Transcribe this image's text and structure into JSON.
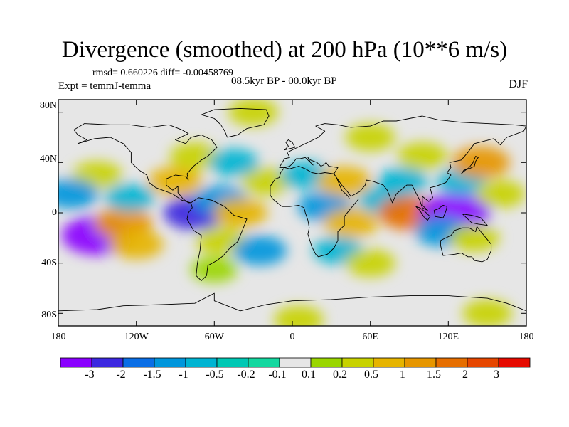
{
  "title": "Divergence (smoothed) at 200 hPa (10**6 m/s)",
  "stats": "rmsd= 0.660226 diff= -0.00458769",
  "experiment": "Expt = temmJ-temma",
  "period": "08.5kyr BP - 00.0kyr BP",
  "season": "DJF",
  "lat_ticks": [
    "80N",
    "40N",
    "0",
    "40S",
    "80S"
  ],
  "lon_ticks": [
    "180",
    "120W",
    "60W",
    "0",
    "60E",
    "120E",
    "180"
  ],
  "colorbar": {
    "labels": [
      "-3",
      "-2",
      "-1.5",
      "-1",
      "-0.5",
      "-0.2",
      "-0.1",
      "0.1",
      "0.2",
      "0.5",
      "1",
      "1.5",
      "2",
      "3"
    ],
    "colors": [
      "#8a00ff",
      "#3c28e0",
      "#0a6ee6",
      "#0096dc",
      "#00b4d2",
      "#00c8b4",
      "#14d8a0",
      "#e6e6e6",
      "#9ad600",
      "#c8d200",
      "#e6b400",
      "#e69600",
      "#e66e00",
      "#e64600",
      "#e60a00"
    ]
  },
  "map": {
    "lat_range": [
      -90,
      90
    ],
    "lon_range": [
      -180,
      180
    ],
    "neutral_color": "#e6e6e6",
    "anomalies": [
      {
        "lon": -150,
        "lat": -18,
        "value": -3
      },
      {
        "lon": -130,
        "lat": -8,
        "value": 1.5
      },
      {
        "lon": -120,
        "lat": -25,
        "value": 1
      },
      {
        "lon": -150,
        "lat": 30,
        "value": 0.5
      },
      {
        "lon": -125,
        "lat": 12,
        "value": -0.5
      },
      {
        "lon": -170,
        "lat": 15,
        "value": -1
      },
      {
        "lon": -90,
        "lat": 25,
        "value": 1
      },
      {
        "lon": -75,
        "lat": 0,
        "value": -2
      },
      {
        "lon": -55,
        "lat": 10,
        "value": -1
      },
      {
        "lon": -40,
        "lat": 0,
        "value": 1
      },
      {
        "lon": -55,
        "lat": -22,
        "value": 0.5
      },
      {
        "lon": -25,
        "lat": -30,
        "value": -1
      },
      {
        "lon": -60,
        "lat": -45,
        "value": 0.2
      },
      {
        "lon": -20,
        "lat": 25,
        "value": 0.5
      },
      {
        "lon": -75,
        "lat": 45,
        "value": 0.5
      },
      {
        "lon": -45,
        "lat": 40,
        "value": -0.5
      },
      {
        "lon": 10,
        "lat": 30,
        "value": -0.5
      },
      {
        "lon": 25,
        "lat": 5,
        "value": -1
      },
      {
        "lon": 40,
        "lat": 25,
        "value": 1
      },
      {
        "lon": 45,
        "lat": -8,
        "value": 1
      },
      {
        "lon": 35,
        "lat": -30,
        "value": -0.5
      },
      {
        "lon": 60,
        "lat": -40,
        "value": 0.5
      },
      {
        "lon": 70,
        "lat": 10,
        "value": -0.5
      },
      {
        "lon": 90,
        "lat": 0,
        "value": 2
      },
      {
        "lon": 85,
        "lat": 25,
        "value": -0.5
      },
      {
        "lon": 125,
        "lat": 0,
        "value": -3
      },
      {
        "lon": 115,
        "lat": -15,
        "value": -1
      },
      {
        "lon": 140,
        "lat": -20,
        "value": 0.5
      },
      {
        "lon": 130,
        "lat": 25,
        "value": -0.5
      },
      {
        "lon": 145,
        "lat": 40,
        "value": 1.5
      },
      {
        "lon": 100,
        "lat": 45,
        "value": 0.5
      },
      {
        "lon": 160,
        "lat": 15,
        "value": 0.5
      },
      {
        "lon": 60,
        "lat": 60,
        "value": 0.5
      },
      {
        "lon": -30,
        "lat": 80,
        "value": 0.5
      },
      {
        "lon": 5,
        "lat": -85,
        "value": 0.5
      },
      {
        "lon": 150,
        "lat": -80,
        "value": 0.5
      }
    ],
    "coastlines": [
      [
        [
          -168,
          66
        ],
        [
          -160,
          71
        ],
        [
          -140,
          70
        ],
        [
          -125,
          70
        ],
        [
          -110,
          68
        ],
        [
          -95,
          70
        ],
        [
          -85,
          66
        ],
        [
          -80,
          63
        ],
        [
          -90,
          58
        ],
        [
          -82,
          55
        ],
        [
          -78,
          60
        ],
        [
          -70,
          62
        ],
        [
          -62,
          58
        ],
        [
          -58,
          52
        ],
        [
          -65,
          45
        ],
        [
          -70,
          42
        ],
        [
          -76,
          37
        ],
        [
          -81,
          31
        ],
        [
          -80,
          26
        ],
        [
          -82,
          29
        ],
        [
          -90,
          30
        ],
        [
          -97,
          27
        ],
        [
          -97,
          22
        ],
        [
          -92,
          18
        ],
        [
          -88,
          21
        ],
        [
          -88,
          16
        ],
        [
          -84,
          11
        ],
        [
          -80,
          8
        ],
        [
          -78,
          8
        ],
        [
          -85,
          10
        ],
        [
          -92,
          15
        ],
        [
          -105,
          20
        ],
        [
          -110,
          24
        ],
        [
          -112,
          30
        ],
        [
          -118,
          34
        ],
        [
          -124,
          40
        ],
        [
          -124,
          48
        ],
        [
          -130,
          55
        ],
        [
          -140,
          60
        ],
        [
          -152,
          59
        ],
        [
          -165,
          55
        ],
        [
          -158,
          58
        ],
        [
          -165,
          62
        ],
        [
          -168,
          66
        ]
      ],
      [
        [
          -78,
          8
        ],
        [
          -72,
          12
        ],
        [
          -62,
          10
        ],
        [
          -52,
          5
        ],
        [
          -45,
          -2
        ],
        [
          -35,
          -5
        ],
        [
          -38,
          -13
        ],
        [
          -42,
          -23
        ],
        [
          -48,
          -28
        ],
        [
          -53,
          -34
        ],
        [
          -58,
          -38
        ],
        [
          -65,
          -42
        ],
        [
          -66,
          -50
        ],
        [
          -70,
          -54
        ],
        [
          -74,
          -50
        ],
        [
          -73,
          -40
        ],
        [
          -71,
          -30
        ],
        [
          -70,
          -18
        ],
        [
          -76,
          -14
        ],
        [
          -81,
          -5
        ],
        [
          -80,
          0
        ],
        [
          -77,
          4
        ],
        [
          -78,
          8
        ]
      ],
      [
        [
          -50,
          60
        ],
        [
          -42,
          62
        ],
        [
          -35,
          67
        ],
        [
          -22,
          70
        ],
        [
          -18,
          77
        ],
        [
          -20,
          82
        ],
        [
          -40,
          83
        ],
        [
          -60,
          82
        ],
        [
          -70,
          78
        ],
        [
          -60,
          75
        ],
        [
          -55,
          70
        ],
        [
          -52,
          65
        ],
        [
          -50,
          60
        ]
      ],
      [
        [
          -10,
          36
        ],
        [
          -6,
          43
        ],
        [
          -2,
          44
        ],
        [
          -4,
          48
        ],
        [
          2,
          51
        ],
        [
          8,
          54
        ],
        [
          12,
          56
        ],
        [
          20,
          60
        ],
        [
          25,
          65
        ],
        [
          18,
          69
        ],
        [
          25,
          71
        ],
        [
          35,
          70
        ],
        [
          45,
          68
        ],
        [
          60,
          69
        ],
        [
          70,
          73
        ],
        [
          80,
          73
        ],
        [
          100,
          77
        ],
        [
          112,
          74
        ],
        [
          130,
          72
        ],
        [
          150,
          71
        ],
        [
          170,
          70
        ],
        [
          180,
          69
        ],
        [
          178,
          65
        ],
        [
          165,
          60
        ],
        [
          160,
          54
        ],
        [
          155,
          59
        ],
        [
          140,
          55
        ],
        [
          135,
          48
        ],
        [
          130,
          42
        ],
        [
          121,
          40
        ],
        [
          122,
          36
        ],
        [
          119,
          32
        ],
        [
          122,
          30
        ],
        [
          118,
          24
        ],
        [
          110,
          21
        ],
        [
          106,
          20
        ],
        [
          108,
          12
        ],
        [
          105,
          9
        ],
        [
          100,
          13
        ],
        [
          100,
          6
        ],
        [
          104,
          2
        ],
        [
          100,
          4
        ],
        [
          98,
          10
        ],
        [
          95,
          16
        ],
        [
          92,
          22
        ],
        [
          88,
          22
        ],
        [
          80,
          15
        ],
        [
          77,
          8
        ],
        [
          73,
          18
        ],
        [
          70,
          22
        ],
        [
          62,
          25
        ],
        [
          57,
          26
        ],
        [
          56,
          22
        ],
        [
          52,
          17
        ],
        [
          45,
          13
        ],
        [
          43,
          16
        ],
        [
          38,
          22
        ],
        [
          34,
          28
        ],
        [
          32,
          31
        ],
        [
          35,
          36
        ],
        [
          28,
          37
        ],
        [
          26,
          40
        ],
        [
          24,
          38
        ],
        [
          22,
          37
        ],
        [
          19,
          40
        ],
        [
          14,
          42
        ],
        [
          12,
          44
        ],
        [
          14,
          40
        ],
        [
          16,
          38
        ],
        [
          10,
          44
        ],
        [
          6,
          43
        ],
        [
          3,
          43
        ],
        [
          0,
          39
        ],
        [
          -2,
          37
        ],
        [
          -6,
          36
        ],
        [
          -10,
          36
        ]
      ],
      [
        [
          -17,
          21
        ],
        [
          -17,
          14
        ],
        [
          -15,
          11
        ],
        [
          -8,
          5
        ],
        [
          -2,
          5
        ],
        [
          5,
          6
        ],
        [
          9,
          4
        ],
        [
          10,
          0
        ],
        [
          12,
          -6
        ],
        [
          13,
          -12
        ],
        [
          12,
          -17
        ],
        [
          15,
          -27
        ],
        [
          18,
          -33
        ],
        [
          20,
          -35
        ],
        [
          27,
          -33
        ],
        [
          32,
          -28
        ],
        [
          35,
          -22
        ],
        [
          35,
          -15
        ],
        [
          40,
          -10
        ],
        [
          40,
          -3
        ],
        [
          43,
          1
        ],
        [
          51,
          11
        ],
        [
          44,
          11
        ],
        [
          43,
          13
        ],
        [
          38,
          18
        ],
        [
          34,
          28
        ],
        [
          32,
          31
        ],
        [
          25,
          32
        ],
        [
          20,
          31
        ],
        [
          15,
          32
        ],
        [
          10,
          35
        ],
        [
          5,
          37
        ],
        [
          -2,
          35
        ],
        [
          -6,
          36
        ],
        [
          -9,
          32
        ],
        [
          -10,
          28
        ],
        [
          -13,
          27
        ],
        [
          -17,
          21
        ]
      ],
      [
        [
          114,
          -22
        ],
        [
          114,
          -26
        ],
        [
          116,
          -34
        ],
        [
          125,
          -33
        ],
        [
          130,
          -32
        ],
        [
          135,
          -35
        ],
        [
          138,
          -35
        ],
        [
          140,
          -38
        ],
        [
          146,
          -39
        ],
        [
          150,
          -37
        ],
        [
          153,
          -30
        ],
        [
          153,
          -25
        ],
        [
          149,
          -20
        ],
        [
          145,
          -15
        ],
        [
          142,
          -11
        ],
        [
          141,
          -15
        ],
        [
          136,
          -12
        ],
        [
          131,
          -12
        ],
        [
          125,
          -14
        ],
        [
          122,
          -18
        ],
        [
          114,
          -22
        ]
      ],
      [
        [
          95,
          5
        ],
        [
          98,
          4
        ],
        [
          102,
          1
        ],
        [
          106,
          -3
        ],
        [
          104,
          -6
        ],
        [
          101,
          -3
        ],
        [
          98,
          2
        ],
        [
          95,
          5
        ]
      ],
      [
        [
          109,
          2
        ],
        [
          112,
          3
        ],
        [
          116,
          6
        ],
        [
          119,
          5
        ],
        [
          118,
          1
        ],
        [
          116,
          -4
        ],
        [
          110,
          -3
        ],
        [
          109,
          2
        ]
      ],
      [
        [
          131,
          -1
        ],
        [
          138,
          -2
        ],
        [
          145,
          -4
        ],
        [
          150,
          -10
        ],
        [
          143,
          -9
        ],
        [
          138,
          -8
        ],
        [
          134,
          -4
        ],
        [
          131,
          -1
        ]
      ],
      [
        [
          130,
          31
        ],
        [
          132,
          34
        ],
        [
          136,
          35
        ],
        [
          140,
          37
        ],
        [
          141,
          41
        ],
        [
          143,
          44
        ],
        [
          141,
          45
        ],
        [
          139,
          40
        ],
        [
          136,
          36
        ],
        [
          132,
          33
        ],
        [
          130,
          31
        ]
      ],
      [
        [
          -6,
          50
        ],
        [
          -3,
          53
        ],
        [
          -5,
          56
        ],
        [
          -3,
          58
        ],
        [
          0,
          56
        ],
        [
          2,
          52
        ],
        [
          -6,
          50
        ]
      ],
      [
        [
          -180,
          -78
        ],
        [
          -150,
          -77
        ],
        [
          -130,
          -74
        ],
        [
          -100,
          -73
        ],
        [
          -75,
          -72
        ],
        [
          -60,
          -64
        ],
        [
          -60,
          -70
        ],
        [
          -40,
          -78
        ],
        [
          -20,
          -73
        ],
        [
          0,
          -70
        ],
        [
          30,
          -69
        ],
        [
          60,
          -67
        ],
        [
          90,
          -66
        ],
        [
          120,
          -66
        ],
        [
          150,
          -68
        ],
        [
          165,
          -72
        ],
        [
          180,
          -78
        ]
      ]
    ]
  }
}
